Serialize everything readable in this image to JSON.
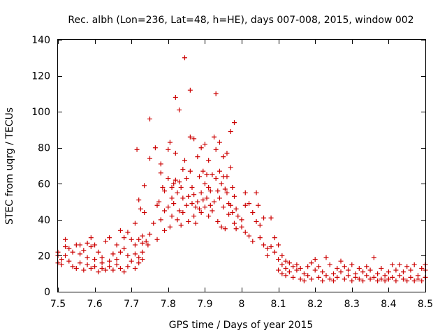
{
  "chart_data": {
    "type": "scatter",
    "title": "Rec. albh (Lon=236, Lat=48, h=HE), days 007-008, 2015, window 002",
    "xlabel": "GPS time / Days of year 2015",
    "ylabel": "STEC from uqrg / TECUs",
    "xlim": [
      7.5,
      8.5
    ],
    "ylim": [
      0,
      140
    ],
    "xticks": [
      7.5,
      7.6,
      7.7,
      7.8,
      7.9,
      8.0,
      8.1,
      8.2,
      8.3,
      8.4,
      8.5
    ],
    "xtick_labels": [
      "7.5",
      "7.6",
      "7.7",
      "7.8",
      "7.9",
      "8",
      "8.1",
      "8.2",
      "8.3",
      "8.4",
      "8.5"
    ],
    "yticks": [
      0,
      20,
      40,
      60,
      80,
      100,
      120,
      140
    ],
    "ytick_labels": [
      "0",
      "20",
      "40",
      "60",
      "80",
      "100",
      "120",
      "140"
    ],
    "grid": false,
    "legend": false,
    "marker": "plus",
    "color": "#cc0000",
    "series": [
      {
        "name": "STEC",
        "points": [
          [
            7.5,
            16
          ],
          [
            7.5,
            20
          ],
          [
            7.5,
            22
          ],
          [
            7.51,
            18
          ],
          [
            7.51,
            15
          ],
          [
            7.52,
            29
          ],
          [
            7.52,
            25
          ],
          [
            7.52,
            20
          ],
          [
            7.53,
            24
          ],
          [
            7.53,
            17
          ],
          [
            7.54,
            14
          ],
          [
            7.54,
            22
          ],
          [
            7.55,
            13
          ],
          [
            7.55,
            26
          ],
          [
            7.56,
            16
          ],
          [
            7.56,
            21
          ],
          [
            7.57,
            23
          ],
          [
            7.57,
            12
          ],
          [
            7.58,
            27
          ],
          [
            7.58,
            15
          ],
          [
            7.58,
            19
          ],
          [
            7.59,
            25
          ],
          [
            7.59,
            13
          ],
          [
            7.6,
            14
          ],
          [
            7.6,
            18
          ],
          [
            7.6,
            26
          ],
          [
            7.61,
            11
          ],
          [
            7.61,
            22
          ],
          [
            7.62,
            16
          ],
          [
            7.62,
            13
          ],
          [
            7.62,
            19
          ],
          [
            7.63,
            12
          ],
          [
            7.63,
            28
          ],
          [
            7.64,
            14
          ],
          [
            7.64,
            17
          ],
          [
            7.65,
            21
          ],
          [
            7.65,
            12
          ],
          [
            7.66,
            26
          ],
          [
            7.66,
            18
          ],
          [
            7.66,
            15
          ],
          [
            7.67,
            22
          ],
          [
            7.67,
            13
          ],
          [
            7.68,
            24
          ],
          [
            7.68,
            11
          ],
          [
            7.69,
            20
          ],
          [
            7.69,
            14
          ],
          [
            7.7,
            29
          ],
          [
            7.7,
            17
          ],
          [
            7.71,
            26
          ],
          [
            7.71,
            21
          ],
          [
            7.71,
            13
          ],
          [
            7.72,
            19
          ],
          [
            7.72,
            16
          ],
          [
            7.73,
            27
          ],
          [
            7.73,
            22
          ],
          [
            7.73,
            18
          ],
          [
            7.56,
            26
          ],
          [
            7.59,
            30
          ],
          [
            7.64,
            30
          ],
          [
            7.67,
            34
          ],
          [
            7.68,
            30
          ],
          [
            7.69,
            33
          ],
          [
            7.71,
            38
          ],
          [
            7.72,
            29
          ],
          [
            7.73,
            31
          ],
          [
            7.715,
            79
          ],
          [
            7.725,
            46
          ],
          [
            7.72,
            51
          ],
          [
            7.735,
            59
          ],
          [
            7.735,
            44
          ],
          [
            7.74,
            28
          ],
          [
            7.745,
            26
          ],
          [
            7.75,
            96
          ],
          [
            7.75,
            74
          ],
          [
            7.75,
            32
          ],
          [
            7.76,
            38
          ],
          [
            7.765,
            80
          ],
          [
            7.77,
            48
          ],
          [
            7.77,
            29
          ],
          [
            7.775,
            50
          ],
          [
            7.78,
            71
          ],
          [
            7.78,
            66
          ],
          [
            7.78,
            40
          ],
          [
            7.785,
            58
          ],
          [
            7.79,
            56
          ],
          [
            7.79,
            45
          ],
          [
            7.79,
            34
          ],
          [
            7.8,
            79
          ],
          [
            7.8,
            63
          ],
          [
            7.8,
            47
          ],
          [
            7.805,
            83
          ],
          [
            7.805,
            36
          ],
          [
            7.81,
            58
          ],
          [
            7.81,
            52
          ],
          [
            7.81,
            42
          ],
          [
            7.815,
            60
          ],
          [
            7.815,
            49
          ],
          [
            7.82,
            108
          ],
          [
            7.82,
            77
          ],
          [
            7.82,
            62
          ],
          [
            7.825,
            55
          ],
          [
            7.825,
            40
          ],
          [
            7.83,
            101
          ],
          [
            7.83,
            61
          ],
          [
            7.83,
            45
          ],
          [
            7.835,
            58
          ],
          [
            7.835,
            37
          ],
          [
            7.84,
            68
          ],
          [
            7.84,
            52
          ],
          [
            7.84,
            44
          ],
          [
            7.845,
            130
          ],
          [
            7.845,
            73
          ],
          [
            7.85,
            63
          ],
          [
            7.85,
            48
          ],
          [
            7.855,
            53
          ],
          [
            7.855,
            39
          ],
          [
            7.86,
            112
          ],
          [
            7.86,
            86
          ],
          [
            7.86,
            67
          ],
          [
            7.865,
            58
          ],
          [
            7.865,
            49
          ],
          [
            7.87,
            85
          ],
          [
            7.87,
            54
          ],
          [
            7.87,
            42
          ],
          [
            7.875,
            47
          ],
          [
            7.875,
            38
          ],
          [
            7.88,
            75
          ],
          [
            7.88,
            50
          ],
          [
            7.885,
            64
          ],
          [
            7.885,
            46
          ],
          [
            7.89,
            80
          ],
          [
            7.89,
            55
          ],
          [
            7.89,
            44
          ],
          [
            7.895,
            67
          ],
          [
            7.895,
            51
          ],
          [
            7.9,
            82
          ],
          [
            7.9,
            60
          ],
          [
            7.9,
            47
          ],
          [
            7.905,
            65
          ],
          [
            7.905,
            52
          ],
          [
            7.91,
            73
          ],
          [
            7.91,
            58
          ],
          [
            7.91,
            42
          ],
          [
            7.915,
            56
          ],
          [
            7.915,
            48
          ],
          [
            7.92,
            65
          ],
          [
            7.92,
            45
          ],
          [
            7.925,
            86
          ],
          [
            7.925,
            50
          ],
          [
            7.93,
            110
          ],
          [
            7.93,
            79
          ],
          [
            7.93,
            63
          ],
          [
            7.935,
            56
          ],
          [
            7.935,
            39
          ],
          [
            7.94,
            83
          ],
          [
            7.94,
            67
          ],
          [
            7.94,
            52
          ],
          [
            7.945,
            60
          ],
          [
            7.945,
            36
          ],
          [
            7.95,
            75
          ],
          [
            7.95,
            64
          ],
          [
            7.95,
            47
          ],
          [
            7.955,
            57
          ],
          [
            7.955,
            35
          ],
          [
            7.96,
            77
          ],
          [
            7.96,
            64
          ],
          [
            7.96,
            55
          ],
          [
            7.965,
            49
          ],
          [
            7.965,
            43
          ],
          [
            7.97,
            89
          ],
          [
            7.97,
            69
          ],
          [
            7.97,
            48
          ],
          [
            7.975,
            58
          ],
          [
            7.975,
            44
          ],
          [
            7.98,
            94
          ],
          [
            7.98,
            53
          ],
          [
            7.98,
            38
          ],
          [
            7.985,
            46
          ],
          [
            7.985,
            35
          ],
          [
            7.99,
            42
          ],
          [
            8.0,
            40
          ],
          [
            8.0,
            36
          ],
          [
            8.01,
            55
          ],
          [
            8.01,
            48
          ],
          [
            8.01,
            33
          ],
          [
            8.02,
            49
          ],
          [
            8.02,
            31
          ],
          [
            8.03,
            44
          ],
          [
            8.03,
            28
          ],
          [
            8.04,
            55
          ],
          [
            8.04,
            39
          ],
          [
            8.045,
            48
          ],
          [
            8.05,
            37
          ],
          [
            8.05,
            30
          ],
          [
            8.06,
            41
          ],
          [
            8.06,
            26
          ],
          [
            8.07,
            24
          ],
          [
            8.07,
            20
          ],
          [
            8.08,
            41
          ],
          [
            8.08,
            25
          ],
          [
            8.09,
            30
          ],
          [
            8.09,
            22
          ],
          [
            8.1,
            26
          ],
          [
            8.1,
            18
          ],
          [
            8.1,
            12
          ],
          [
            8.11,
            20
          ],
          [
            8.11,
            15
          ],
          [
            8.11,
            10
          ],
          [
            8.12,
            17
          ],
          [
            8.12,
            13
          ],
          [
            8.12,
            9
          ],
          [
            8.13,
            16
          ],
          [
            8.13,
            11
          ],
          [
            8.14,
            14
          ],
          [
            8.14,
            8
          ],
          [
            8.15,
            15
          ],
          [
            8.15,
            12
          ],
          [
            8.16,
            7
          ],
          [
            8.16,
            13
          ],
          [
            8.17,
            10
          ],
          [
            8.17,
            6
          ],
          [
            8.18,
            14
          ],
          [
            8.18,
            9
          ],
          [
            8.19,
            16
          ],
          [
            8.19,
            7
          ],
          [
            8.2,
            12
          ],
          [
            8.2,
            18
          ],
          [
            8.21,
            8
          ],
          [
            8.21,
            14
          ],
          [
            8.22,
            6
          ],
          [
            8.22,
            11
          ],
          [
            8.23,
            19
          ],
          [
            8.23,
            9
          ],
          [
            8.24,
            7
          ],
          [
            8.24,
            15
          ],
          [
            8.25,
            10
          ],
          [
            8.25,
            6
          ],
          [
            8.26,
            13
          ],
          [
            8.26,
            8
          ],
          [
            8.27,
            17
          ],
          [
            8.27,
            11
          ],
          [
            8.28,
            7
          ],
          [
            8.28,
            14
          ],
          [
            8.29,
            9
          ],
          [
            8.29,
            12
          ],
          [
            8.3,
            6
          ],
          [
            8.3,
            15
          ],
          [
            8.31,
            10
          ],
          [
            8.31,
            8
          ],
          [
            8.32,
            13
          ],
          [
            8.32,
            7
          ],
          [
            8.33,
            11
          ],
          [
            8.33,
            6
          ],
          [
            8.34,
            9
          ],
          [
            8.34,
            14
          ],
          [
            8.35,
            7
          ],
          [
            8.35,
            12
          ],
          [
            8.36,
            19
          ],
          [
            8.36,
            8
          ],
          [
            8.37,
            10
          ],
          [
            8.37,
            6
          ],
          [
            8.38,
            13
          ],
          [
            8.38,
            7
          ],
          [
            8.39,
            9
          ],
          [
            8.39,
            6
          ],
          [
            8.4,
            11
          ],
          [
            8.4,
            7
          ],
          [
            8.41,
            15
          ],
          [
            8.41,
            8
          ],
          [
            8.42,
            6
          ],
          [
            8.42,
            12
          ],
          [
            8.43,
            9
          ],
          [
            8.43,
            15
          ],
          [
            8.44,
            7
          ],
          [
            8.44,
            11
          ],
          [
            8.45,
            6
          ],
          [
            8.45,
            14
          ],
          [
            8.46,
            8
          ],
          [
            8.46,
            12
          ],
          [
            8.47,
            6
          ],
          [
            8.47,
            15
          ],
          [
            8.48,
            9
          ],
          [
            8.48,
            7
          ],
          [
            8.49,
            13
          ],
          [
            8.49,
            6
          ],
          [
            8.5,
            8
          ],
          [
            8.5,
            12
          ],
          [
            8.5,
            15
          ]
        ]
      }
    ]
  }
}
